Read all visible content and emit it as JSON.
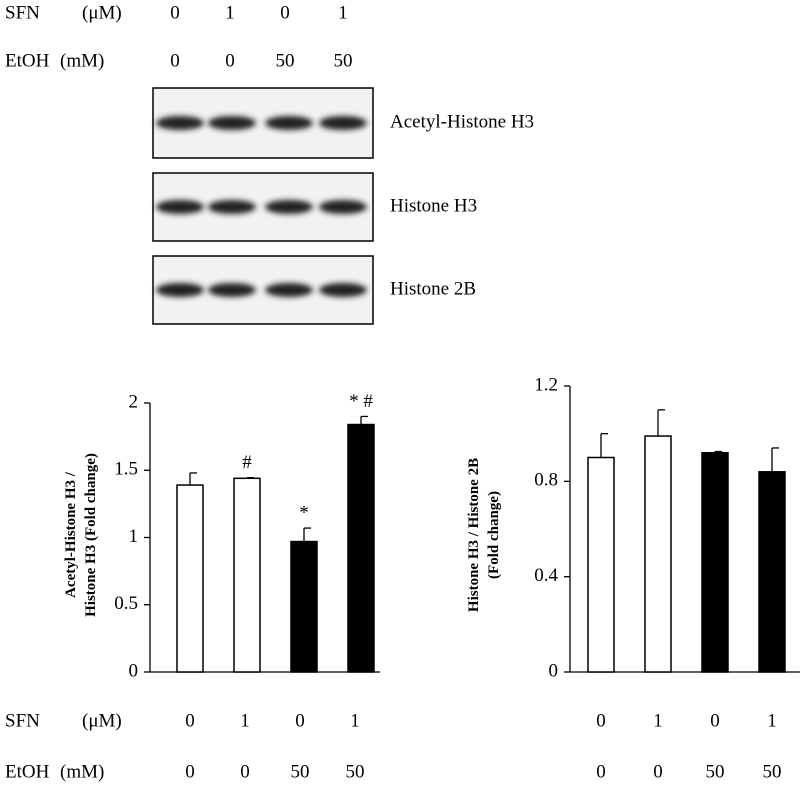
{
  "treatments": [
    {
      "label": "SFN",
      "unit": "(μM)",
      "values": [
        0,
        1,
        0,
        1
      ]
    },
    {
      "label": "EtOH",
      "unit": "(mM)",
      "values": [
        0,
        0,
        50,
        50
      ]
    }
  ],
  "blots": [
    {
      "label": "Acetyl-Histone H3"
    },
    {
      "label": "Histone H3"
    },
    {
      "label": "Histone 2B"
    }
  ],
  "chart_data": [
    {
      "type": "bar",
      "ylabel": [
        "Acetyl-Histone H3 /",
        "Histone  H3 (Fold change)"
      ],
      "values": [
        1.39,
        1.44,
        0.97,
        1.84
      ],
      "errors": [
        0.09,
        0.005,
        0.1,
        0.06
      ],
      "annotations": [
        null,
        "#",
        "*",
        "* #"
      ],
      "colors": [
        "#ffffff",
        "#ffffff",
        "#000000",
        "#000000"
      ],
      "ylim": [
        0,
        2
      ],
      "yticks": [
        0,
        0.5,
        1,
        1.5,
        2
      ]
    },
    {
      "type": "bar",
      "ylabel": [
        "Histone H3 / Histone 2B",
        "(Fold change)"
      ],
      "values": [
        0.9,
        0.99,
        0.92,
        0.84
      ],
      "errors": [
        0.1,
        0.11,
        0.005,
        0.1
      ],
      "annotations": [
        null,
        null,
        null,
        null
      ],
      "colors": [
        "#ffffff",
        "#ffffff",
        "#000000",
        "#000000"
      ],
      "ylim": [
        0,
        1.2
      ],
      "yticks": [
        0,
        0.4,
        0.8,
        1.2
      ]
    }
  ]
}
